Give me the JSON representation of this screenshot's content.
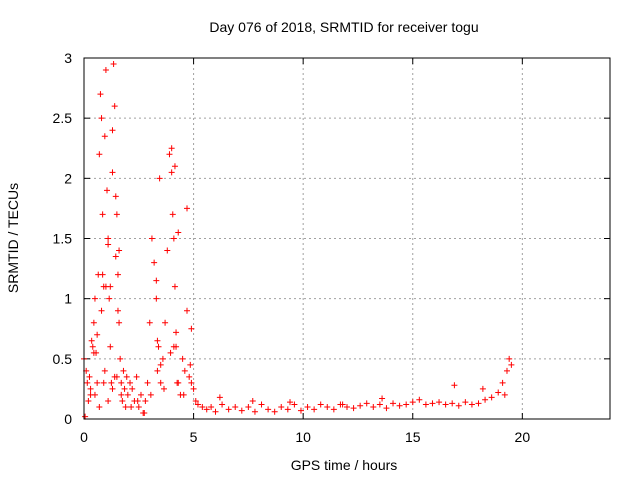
{
  "colors": {
    "marker": "#ff0000",
    "grid": "#a0a0a0",
    "axis": "#000000"
  },
  "chart_data": {
    "type": "scatter",
    "title": "Day 076 of 2018, SRMTID for receiver togu",
    "xlabel": "GPS time / hours",
    "ylabel": "SRMTID / TECUs",
    "xlim": [
      0,
      24
    ],
    "ylim": [
      0,
      3
    ],
    "grid": true,
    "marker": "plus",
    "xticks": [
      0,
      5,
      10,
      15,
      20
    ],
    "xtick_labels": [
      "0",
      "5",
      "10",
      "15",
      "20"
    ],
    "yticks": [
      0,
      0.5,
      1,
      1.5,
      2,
      2.5,
      3
    ],
    "ytick_labels": [
      "0",
      "0.5",
      "1",
      "1.5",
      "2",
      "2.5",
      "3"
    ],
    "series": [
      {
        "name": "SRMTID",
        "x": [
          0.0,
          0.05,
          0.1,
          0.15,
          0.2,
          0.25,
          0.3,
          0.35,
          0.4,
          0.45,
          0.5,
          0.55,
          0.6,
          0.65,
          0.7,
          0.75,
          0.8,
          0.85,
          0.9,
          0.95,
          1.0,
          1.05,
          1.1,
          1.15,
          1.2,
          1.25,
          1.3,
          1.35,
          1.4,
          1.45,
          1.5,
          1.55,
          1.6,
          1.65,
          1.7,
          1.75,
          1.8,
          1.85,
          1.9,
          1.95,
          2.0,
          2.1,
          2.2,
          2.3,
          2.4,
          2.5,
          2.6,
          2.7,
          2.8,
          2.9,
          3.0,
          3.1,
          3.2,
          3.3,
          3.4,
          3.5,
          3.6,
          3.7,
          3.8,
          3.9,
          4.0,
          4.05,
          4.1,
          4.15,
          4.2,
          4.3,
          4.4,
          4.5,
          4.6,
          4.7,
          4.8,
          4.9,
          5.0,
          5.1,
          5.2,
          5.4,
          5.6,
          5.8,
          6.0,
          6.3,
          6.6,
          6.9,
          7.2,
          7.5,
          7.8,
          8.1,
          8.4,
          8.7,
          9.0,
          9.3,
          9.6,
          9.9,
          10.2,
          10.5,
          10.8,
          11.1,
          11.4,
          11.7,
          12.0,
          12.3,
          12.6,
          12.9,
          13.2,
          13.5,
          13.8,
          14.1,
          14.4,
          14.7,
          15.0,
          15.3,
          15.6,
          15.9,
          16.2,
          16.5,
          16.8,
          17.1,
          17.4,
          17.7,
          18.0,
          18.3,
          18.6,
          18.9,
          19.1,
          19.3,
          19.4,
          19.5,
          0.3,
          0.5,
          0.7,
          0.9,
          1.1,
          1.3,
          1.5,
          1.7,
          2.15,
          2.45,
          2.75,
          3.05,
          3.35,
          3.65,
          3.95,
          4.25,
          4.55,
          4.85,
          0.6,
          0.8,
          1.2,
          1.4,
          1.6,
          3.3,
          3.5,
          4.1,
          4.3,
          4.7,
          4.9,
          1.0,
          1.1,
          1.3,
          1.45,
          0.85,
          0.95,
          3.45,
          4.0,
          4.15,
          0.45,
          1.55,
          3.35,
          4.2,
          6.2,
          7.7,
          9.4,
          11.8,
          13.6,
          16.9,
          18.2,
          19.2
        ],
        "y": [
          0.5,
          0.02,
          0.4,
          0.3,
          0.15,
          0.35,
          0.2,
          0.65,
          0.6,
          0.8,
          1.0,
          0.55,
          0.3,
          1.2,
          2.2,
          2.7,
          2.5,
          1.7,
          1.1,
          0.4,
          2.9,
          1.9,
          1.5,
          1.0,
          0.6,
          0.3,
          2.05,
          2.95,
          2.6,
          1.85,
          1.7,
          1.2,
          0.8,
          0.5,
          0.3,
          0.15,
          0.4,
          0.25,
          0.1,
          0.35,
          0.2,
          0.3,
          0.25,
          0.15,
          0.35,
          0.1,
          0.2,
          0.05,
          0.15,
          0.3,
          0.8,
          1.5,
          1.3,
          1.0,
          0.6,
          0.3,
          0.5,
          0.8,
          1.4,
          2.2,
          2.05,
          1.7,
          1.5,
          1.1,
          0.6,
          0.3,
          0.2,
          0.5,
          0.4,
          0.9,
          0.35,
          0.3,
          0.25,
          0.15,
          0.12,
          0.1,
          0.08,
          0.1,
          0.06,
          0.12,
          0.08,
          0.1,
          0.07,
          0.1,
          0.06,
          0.12,
          0.08,
          0.06,
          0.1,
          0.08,
          0.12,
          0.07,
          0.1,
          0.08,
          0.12,
          0.1,
          0.08,
          0.12,
          0.1,
          0.09,
          0.11,
          0.13,
          0.1,
          0.12,
          0.09,
          0.13,
          0.11,
          0.12,
          0.14,
          0.16,
          0.12,
          0.13,
          0.14,
          0.12,
          0.13,
          0.11,
          0.14,
          0.12,
          0.13,
          0.16,
          0.18,
          0.22,
          0.3,
          0.4,
          0.5,
          0.45,
          0.25,
          0.2,
          0.1,
          0.3,
          0.15,
          0.25,
          0.35,
          0.2,
          0.1,
          0.15,
          0.05,
          0.2,
          0.4,
          0.25,
          0.55,
          0.3,
          0.2,
          0.45,
          0.7,
          0.9,
          1.1,
          0.35,
          1.4,
          1.15,
          0.45,
          0.6,
          1.55,
          1.75,
          0.75,
          1.1,
          1.45,
          2.4,
          1.35,
          1.2,
          2.35,
          2.0,
          2.25,
          2.1,
          0.55,
          0.9,
          0.65,
          0.72,
          0.18,
          0.15,
          0.14,
          0.12,
          0.17,
          0.28,
          0.25,
          0.2
        ]
      }
    ]
  }
}
